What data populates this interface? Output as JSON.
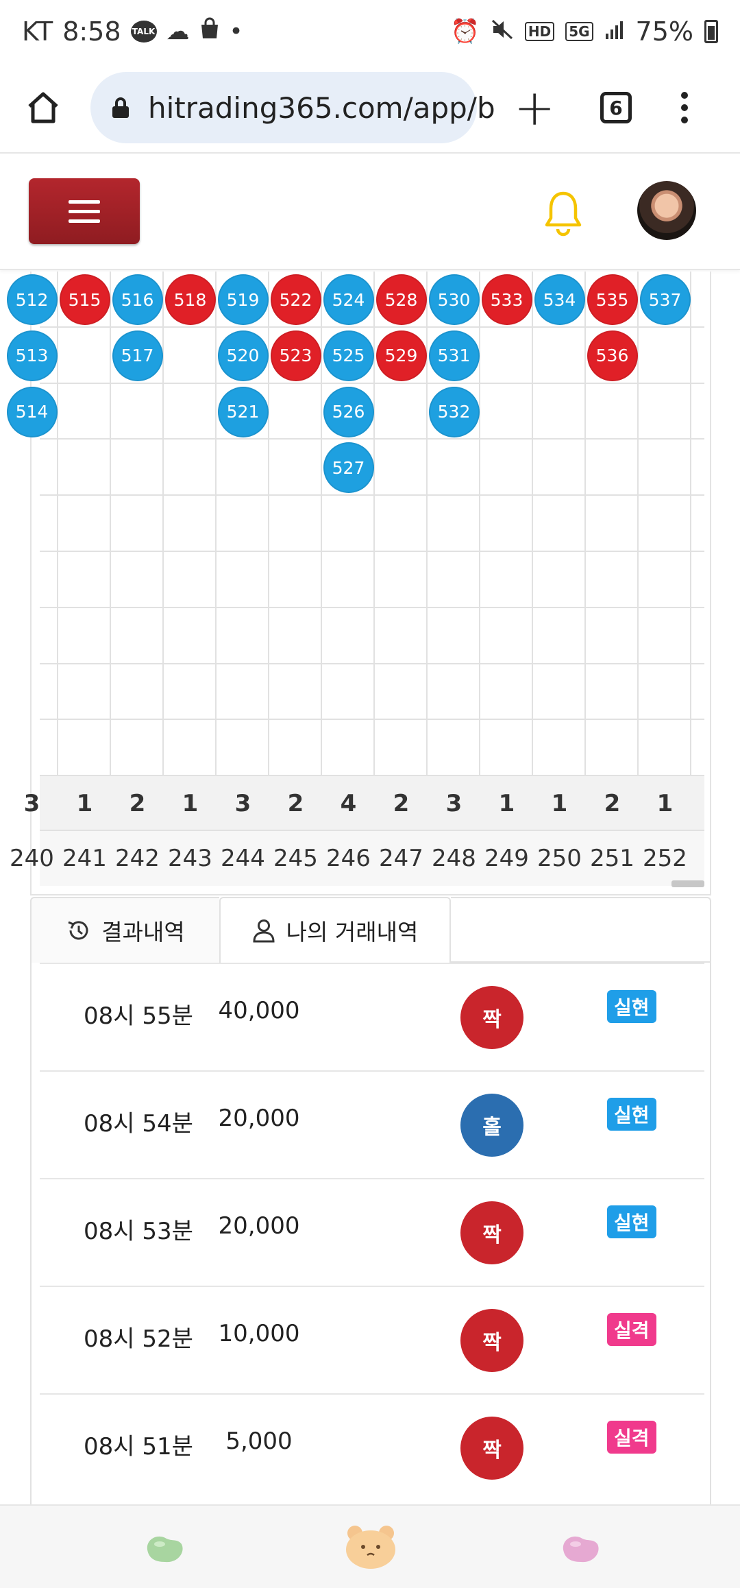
{
  "status_bar": {
    "carrier": "KT",
    "time": "8:58",
    "talk_label": "TALK",
    "dot": "•",
    "hd_label": "HD",
    "net_label": "5G",
    "battery": "75%",
    "icons": [
      "talk-icon",
      "cloud-icon",
      "shopping-bag-icon",
      "alarm-icon",
      "mute-icon",
      "signal-icon",
      "battery-icon"
    ]
  },
  "browser": {
    "url": "hitrading365.com/app/b",
    "tab_count": "6"
  },
  "board": {
    "columns": [
      {
        "round": "240",
        "count": "3",
        "beads": [
          {
            "n": "512",
            "c": "blue"
          },
          {
            "n": "513",
            "c": "blue"
          },
          {
            "n": "514",
            "c": "blue"
          }
        ]
      },
      {
        "round": "241",
        "count": "1",
        "beads": [
          {
            "n": "515",
            "c": "red"
          }
        ]
      },
      {
        "round": "242",
        "count": "2",
        "beads": [
          {
            "n": "516",
            "c": "blue"
          },
          {
            "n": "517",
            "c": "blue"
          }
        ]
      },
      {
        "round": "243",
        "count": "1",
        "beads": [
          {
            "n": "518",
            "c": "red"
          }
        ]
      },
      {
        "round": "244",
        "count": "3",
        "beads": [
          {
            "n": "519",
            "c": "blue"
          },
          {
            "n": "520",
            "c": "blue"
          },
          {
            "n": "521",
            "c": "blue"
          }
        ]
      },
      {
        "round": "245",
        "count": "2",
        "beads": [
          {
            "n": "522",
            "c": "red"
          },
          {
            "n": "523",
            "c": "red"
          }
        ]
      },
      {
        "round": "246",
        "count": "4",
        "beads": [
          {
            "n": "524",
            "c": "blue"
          },
          {
            "n": "525",
            "c": "blue"
          },
          {
            "n": "526",
            "c": "blue"
          },
          {
            "n": "527",
            "c": "blue"
          }
        ]
      },
      {
        "round": "247",
        "count": "2",
        "beads": [
          {
            "n": "528",
            "c": "red"
          },
          {
            "n": "529",
            "c": "red"
          }
        ]
      },
      {
        "round": "248",
        "count": "3",
        "beads": [
          {
            "n": "530",
            "c": "blue"
          },
          {
            "n": "531",
            "c": "blue"
          },
          {
            "n": "532",
            "c": "blue"
          }
        ]
      },
      {
        "round": "249",
        "count": "1",
        "beads": [
          {
            "n": "533",
            "c": "red"
          }
        ]
      },
      {
        "round": "250",
        "count": "1",
        "beads": [
          {
            "n": "534",
            "c": "blue"
          }
        ]
      },
      {
        "round": "251",
        "count": "2",
        "beads": [
          {
            "n": "535",
            "c": "red"
          },
          {
            "n": "536",
            "c": "red"
          }
        ]
      },
      {
        "round": "252",
        "count": "1",
        "beads": [
          {
            "n": "537",
            "c": "blue"
          }
        ]
      }
    ],
    "colors": {
      "red": "#e02027",
      "blue": "#1ea0e0"
    }
  },
  "tabs": {
    "results_label": "결과내역",
    "mine_label": "나의 거래내역"
  },
  "history": [
    {
      "time": "08시 55분",
      "amount": "40,000",
      "pick": "짝",
      "pick_color": "red",
      "result": "실현",
      "result_type": "win"
    },
    {
      "time": "08시 54분",
      "amount": "20,000",
      "pick": "홀",
      "pick_color": "blue",
      "result": "실현",
      "result_type": "win"
    },
    {
      "time": "08시 53분",
      "amount": "20,000",
      "pick": "짝",
      "pick_color": "red",
      "result": "실현",
      "result_type": "win"
    },
    {
      "time": "08시 52분",
      "amount": "10,000",
      "pick": "짝",
      "pick_color": "red",
      "result": "실격",
      "result_type": "lose"
    },
    {
      "time": "08시 51분",
      "amount": "5,000",
      "pick": "짝",
      "pick_color": "red",
      "result": "실격",
      "result_type": "lose"
    }
  ]
}
